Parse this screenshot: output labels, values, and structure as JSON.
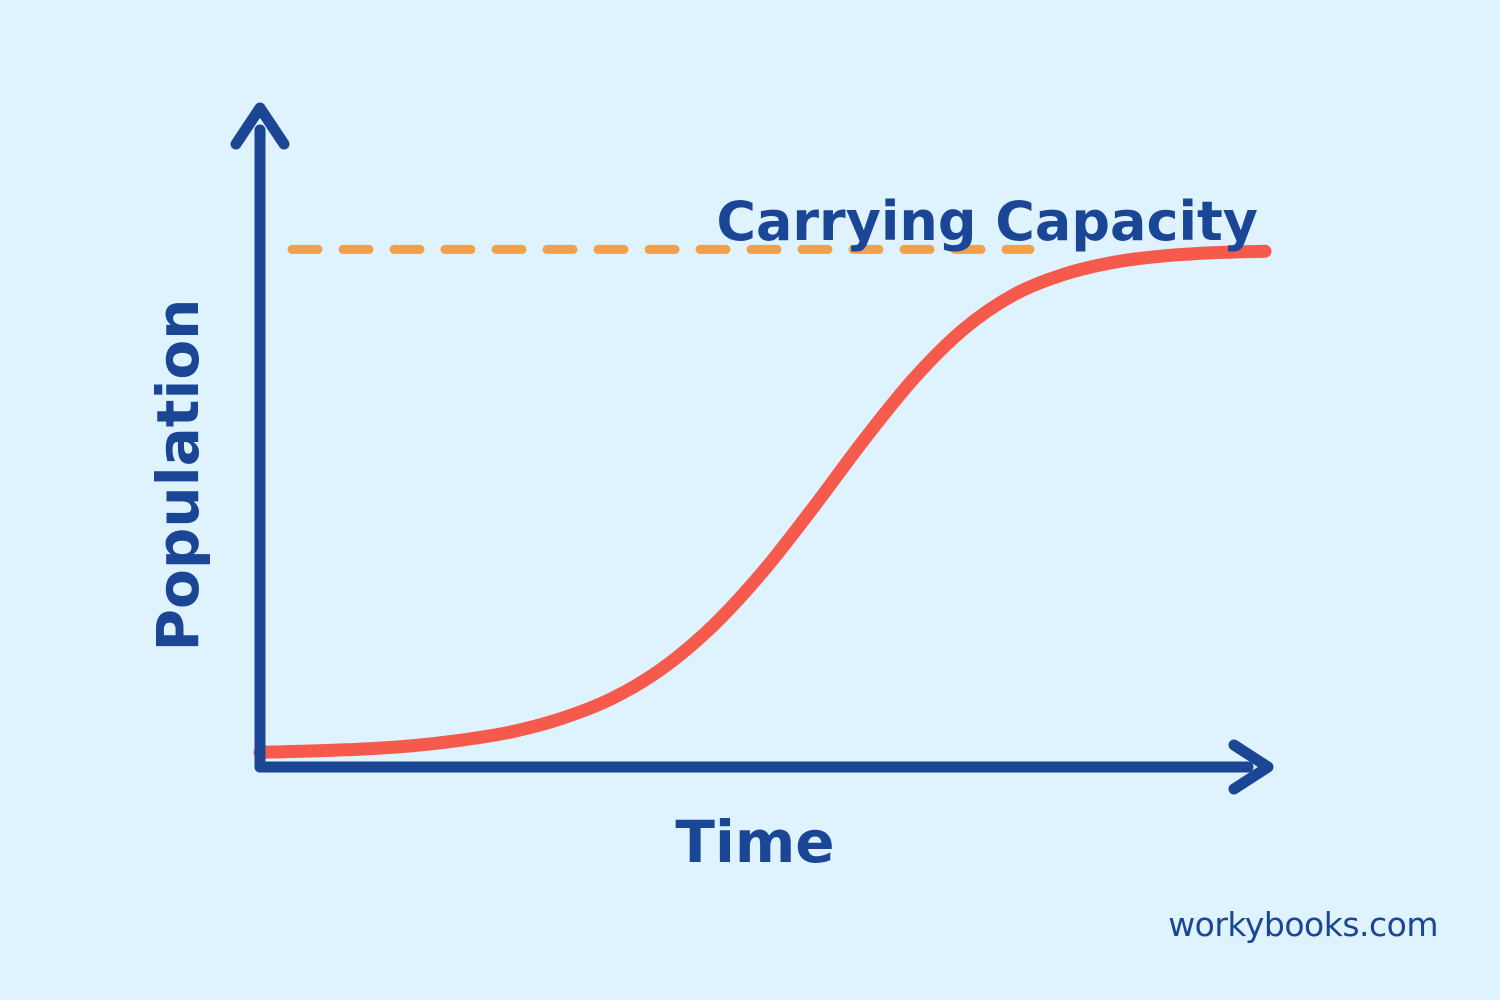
{
  "colors": {
    "background": "#def3fd",
    "axis": "#1b4595",
    "curve": "#f65a4c",
    "capacity_line": "#f1a04c",
    "label": "#1b4595"
  },
  "chart_data": {
    "type": "line",
    "title": "",
    "xlabel": "Time",
    "ylabel": "Population",
    "grid": false,
    "legend": "none",
    "xlim": [
      0,
      100
    ],
    "ylim": [
      0,
      100
    ],
    "x_ticks": [],
    "y_ticks": [],
    "annotations": [
      {
        "text": "Carrying Capacity",
        "kind": "horizontal-reference-line",
        "y": 81
      }
    ],
    "series": [
      {
        "curve": "logistic",
        "x": [
          0,
          5,
          10,
          15,
          20,
          25,
          30,
          35,
          40,
          45,
          50,
          55,
          60,
          65,
          70,
          75,
          80,
          85,
          90,
          95,
          100
        ],
        "y": [
          2.3,
          2.5,
          2.8,
          3.3,
          4.2,
          5.5,
          7.6,
          10.7,
          15.4,
          22.0,
          30.5,
          40.5,
          51.0,
          60.7,
          68.5,
          73.9,
          77.1,
          79.0,
          80.0,
          80.5,
          80.7
        ]
      }
    ]
  },
  "footer": {
    "source": "workybooks.com"
  }
}
